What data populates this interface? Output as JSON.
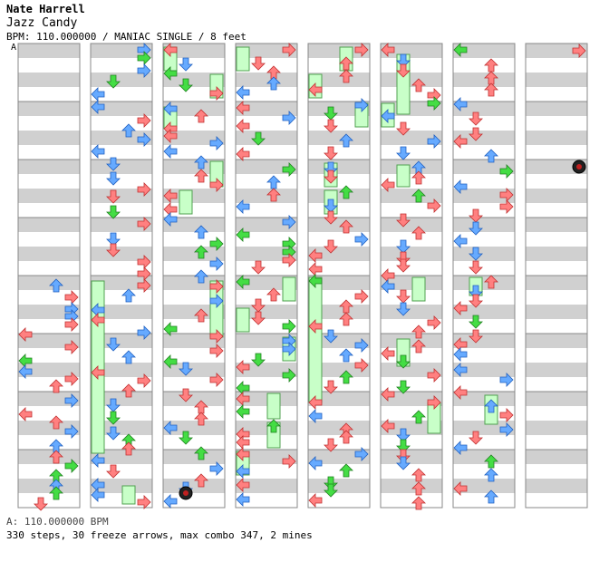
{
  "header": {
    "artist": "Nate Harrell",
    "title": "Jazz Candy",
    "info": "BPM: 110.000000 / MANIAC SINGLE / 8 feet"
  },
  "bpm_marker": "A",
  "footer": {
    "bpm_change": "A: 110.000000 BPM",
    "stats": "330 steps, 30 freeze arrows, max combo 347, 2 mines"
  },
  "chart_data": {
    "type": "step-chart",
    "columns": 8,
    "lanes": [
      "left",
      "down",
      "up",
      "right"
    ],
    "colors": {
      "quarter": "#ff8080",
      "eighth": "#66aaff",
      "sixteenth": "#44dd44",
      "twelfth": "#ff99ff",
      "freeze": "#c8ffc8",
      "mine": "#333333",
      "stripe": "#d0d0d0"
    }
  }
}
